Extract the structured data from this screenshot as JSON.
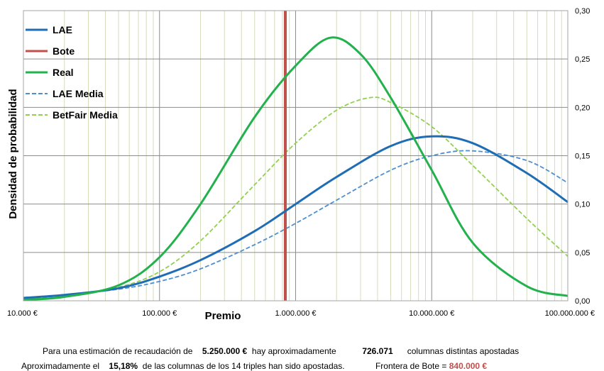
{
  "chart_data": {
    "type": "line",
    "x_scale": "log",
    "xlabel": "Premio",
    "ylabel": "Densidad de probabilidad",
    "xlim": [
      10000,
      100000000
    ],
    "ylim": [
      0,
      0.3
    ],
    "x_ticks": [
      "10.000 €",
      "100.000 €",
      "1.000.000 €",
      "10.000.000 €",
      "100.000.000 €"
    ],
    "y_ticks": [
      "0,00",
      "0,05",
      "0,10",
      "0,15",
      "0,20",
      "0,25",
      "0,30"
    ],
    "y_axis_side": "right",
    "grid": true,
    "legend_position": "top-left",
    "series": [
      {
        "name": "LAE",
        "color": "#1f6db5",
        "style": "solid",
        "x": [
          10000,
          20000,
          50000,
          100000,
          200000,
          500000,
          1000000,
          2000000,
          5000000,
          10000000,
          20000000,
          50000000,
          100000000
        ],
        "y": [
          0.003,
          0.006,
          0.013,
          0.025,
          0.042,
          0.072,
          0.1,
          0.128,
          0.16,
          0.17,
          0.163,
          0.132,
          0.102
        ]
      },
      {
        "name": "Bote",
        "color": "#c0504d",
        "style": "solid",
        "x": [
          840000,
          840000
        ],
        "y": [
          0,
          0.3
        ]
      },
      {
        "name": "Real",
        "color": "#22b14c",
        "style": "solid",
        "x": [
          10000,
          20000,
          50000,
          100000,
          200000,
          500000,
          1000000,
          1800000,
          3000000,
          5000000,
          10000000,
          20000000,
          50000000,
          100000000
        ],
        "y": [
          0.001,
          0.004,
          0.016,
          0.045,
          0.1,
          0.19,
          0.243,
          0.272,
          0.255,
          0.21,
          0.135,
          0.06,
          0.015,
          0.005
        ]
      },
      {
        "name": "LAE Media",
        "color": "#4f8fd0",
        "style": "dashed",
        "x": [
          10000,
          20000,
          50000,
          100000,
          200000,
          500000,
          1000000,
          2000000,
          5000000,
          10000000,
          20000000,
          50000000,
          100000000
        ],
        "y": [
          0.002,
          0.006,
          0.012,
          0.02,
          0.033,
          0.058,
          0.08,
          0.104,
          0.135,
          0.15,
          0.155,
          0.145,
          0.122
        ]
      },
      {
        "name": "BetFair Media",
        "color": "#92d050",
        "style": "dashed",
        "x": [
          10000,
          20000,
          50000,
          100000,
          200000,
          500000,
          1000000,
          2000000,
          3500000,
          5000000,
          10000000,
          20000000,
          50000000,
          100000000
        ],
        "y": [
          0.002,
          0.005,
          0.014,
          0.03,
          0.062,
          0.12,
          0.163,
          0.197,
          0.21,
          0.205,
          0.18,
          0.14,
          0.085,
          0.046
        ]
      }
    ]
  },
  "footer": {
    "line1": {
      "part1": "Para  una estimación de recaudación de",
      "value1": "5.250.000 €",
      "part2": "hay aproximadamente",
      "value2": "726.071",
      "part3": "columnas distintas apostadas"
    },
    "line2": {
      "part1": "Aproximadamente el",
      "value1": "15,18%",
      "part2": "de las columnas de los 14 triples han sido apostadas.",
      "part3": "Frontera de Bote =",
      "value2": "840.000 €"
    }
  }
}
